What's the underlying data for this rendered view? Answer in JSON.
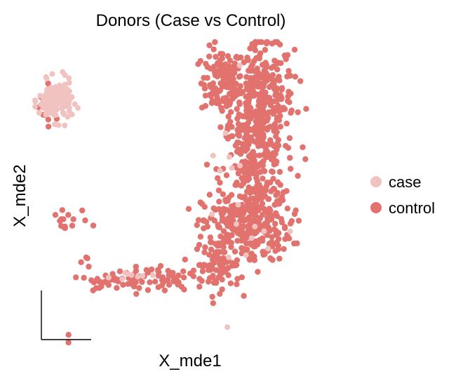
{
  "chart_data": {
    "type": "scatter",
    "title": "Donors (Case vs Control)",
    "xlabel": "X_mde1",
    "ylabel": "X_mde2",
    "xlim": [
      0,
      100
    ],
    "ylim": [
      0,
      100
    ],
    "grid": false,
    "legend_position": "right",
    "series": [
      {
        "name": "case",
        "color": "#f0c3c0",
        "clusters": [
          {
            "cx": 6.5,
            "cy": 81.0,
            "sx": 2.6,
            "sy": 3.2,
            "n": 150,
            "r": 4.0
          },
          {
            "cx": 63.0,
            "cy": 46.0,
            "sx": 6.0,
            "sy": 18.0,
            "n": 18,
            "r": 4.0
          },
          {
            "cx": 30.0,
            "cy": 24.0,
            "sx": 5.0,
            "sy": 1.0,
            "n": 8,
            "r": 4.0
          }
        ]
      },
      {
        "name": "control",
        "color": "#e2726e",
        "clusters": [
          {
            "cx": 4.8,
            "cy": 80.5,
            "sx": 1.8,
            "sy": 3.0,
            "n": 30,
            "r": 4.2
          },
          {
            "cx": 59.0,
            "cy": 87.0,
            "sx": 3.2,
            "sy": 5.5,
            "n": 120,
            "r": 4.2
          },
          {
            "cx": 72.0,
            "cy": 81.0,
            "sx": 5.0,
            "sy": 9.5,
            "n": 330,
            "r": 4.2
          },
          {
            "cx": 69.0,
            "cy": 58.0,
            "sx": 5.0,
            "sy": 10.0,
            "n": 230,
            "r": 4.2
          },
          {
            "cx": 67.0,
            "cy": 40.0,
            "sx": 7.0,
            "sy": 5.5,
            "n": 260,
            "r": 4.2
          },
          {
            "cx": 58.0,
            "cy": 28.0,
            "sx": 3.5,
            "sy": 4.0,
            "n": 80,
            "r": 4.2
          },
          {
            "cx": 43.0,
            "cy": 23.5,
            "sx": 8.0,
            "sy": 1.8,
            "n": 60,
            "r": 4.2
          },
          {
            "cx": 26.0,
            "cy": 22.5,
            "sx": 6.0,
            "sy": 1.0,
            "n": 35,
            "r": 4.2
          },
          {
            "cx": 16.5,
            "cy": 29.0,
            "sx": 0.8,
            "sy": 1.2,
            "n": 4,
            "r": 4.2
          },
          {
            "cx": 10.2,
            "cy": 41.5,
            "sx": 3.0,
            "sy": 3.0,
            "n": 16,
            "r": 4.2
          },
          {
            "cx": 10.5,
            "cy": 4.5,
            "sx": 0.4,
            "sy": 0.8,
            "n": 2,
            "r": 4.2
          }
        ]
      }
    ]
  }
}
